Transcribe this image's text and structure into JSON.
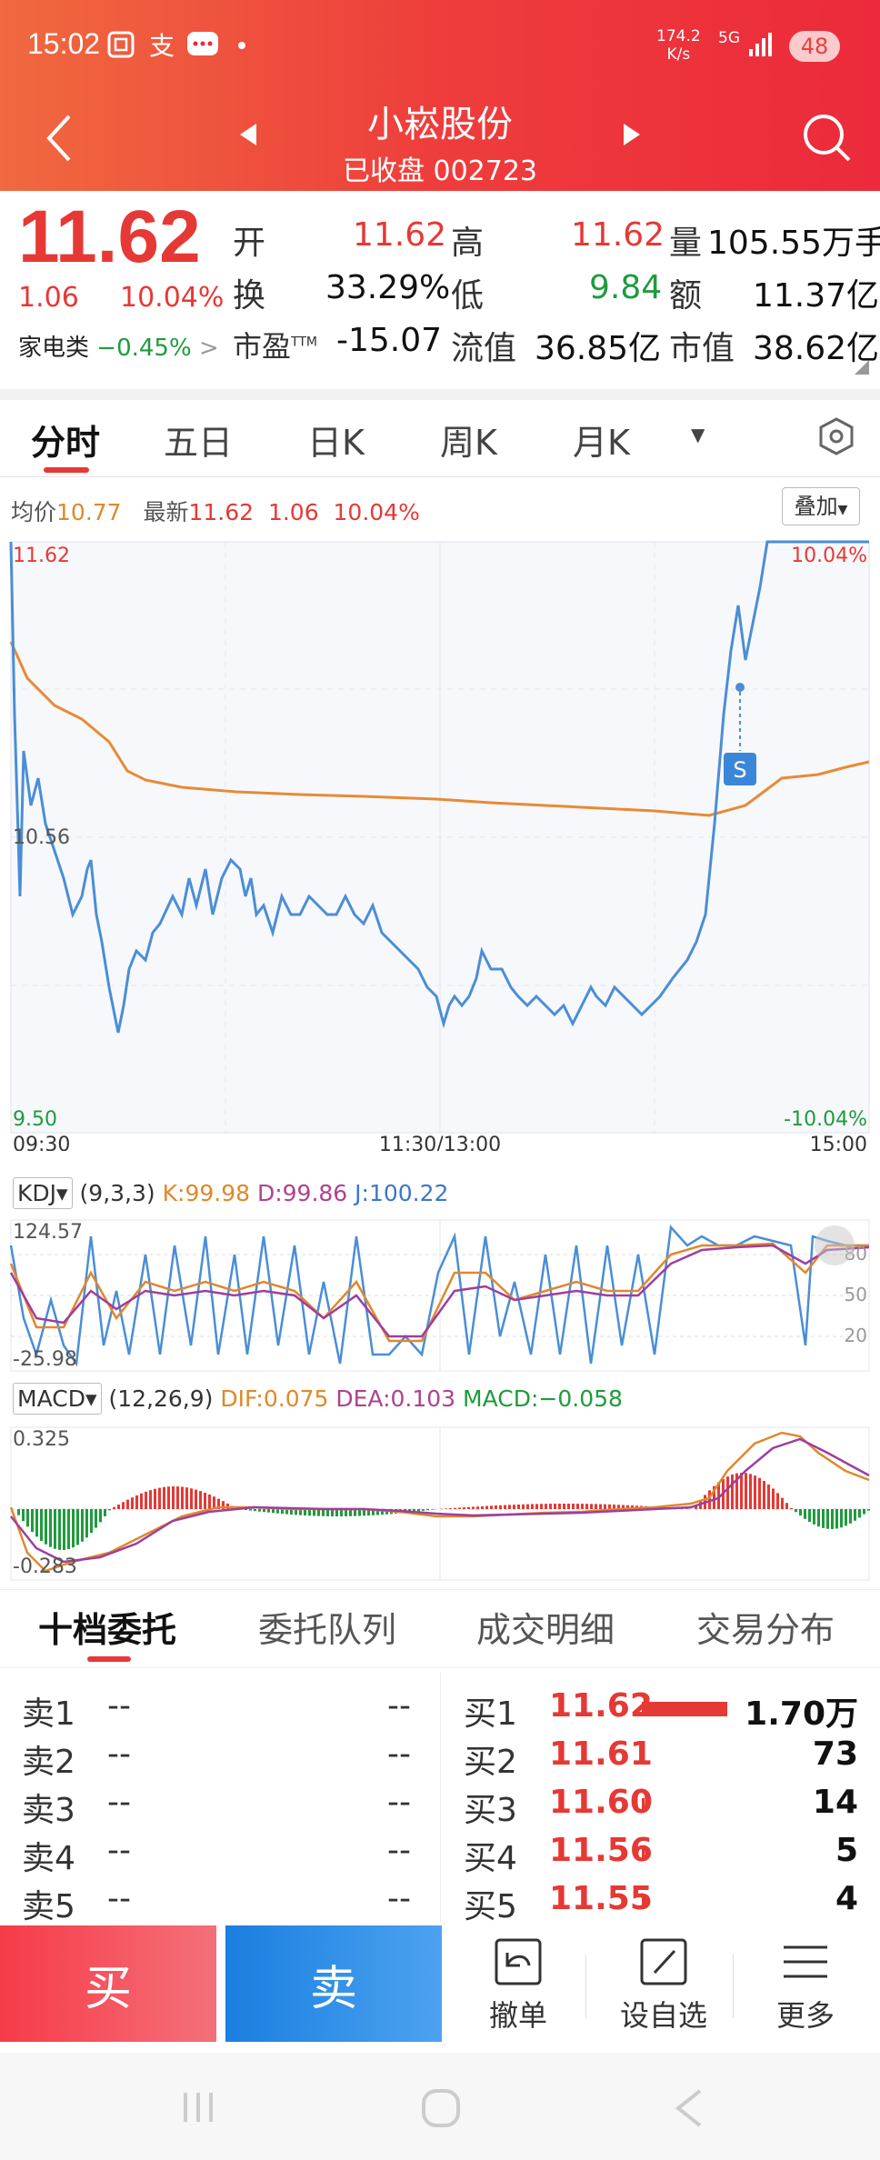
{
  "status_bar": {
    "time": "15:02",
    "speed_value": "174.2",
    "speed_unit": "K/s",
    "network": "5G",
    "battery": "48"
  },
  "header": {
    "stock_name": "小崧股份",
    "status": "已收盘",
    "code": "002723"
  },
  "quote": {
    "price": "11.62",
    "change": "1.06",
    "change_pct": "10.04%",
    "sector": "家电类",
    "sector_change": "−0.45%",
    "sector_arrow": ">",
    "fields": [
      {
        "label": "开",
        "value": "11.62"
      },
      {
        "label": "高",
        "value": "11.62"
      },
      {
        "label": "量",
        "value": "105.55万手"
      },
      {
        "label": "换",
        "value": "33.29%"
      },
      {
        "label": "低",
        "value": "9.84"
      },
      {
        "label": "额",
        "value": "11.37亿"
      },
      {
        "label": "市盈",
        "sup": "TTM",
        "value": "-15.07"
      },
      {
        "label": "流值",
        "value": "36.85亿"
      },
      {
        "label": "市值",
        "value": "38.62亿"
      }
    ]
  },
  "tabs": [
    "分时",
    "五日",
    "日K",
    "周K",
    "月K",
    "更多"
  ],
  "minute_chart": {
    "avg_label": "均价",
    "avg_value": "10.77",
    "latest_label": "最新",
    "latest_price": "11.62",
    "latest_change": "1.06",
    "latest_pct": "10.04%",
    "overlay_button": "叠加",
    "y_top": "11.62",
    "y_mid": "10.56",
    "y_bottom": "9.50",
    "pct_top": "10.04%",
    "pct_bottom": "-10.04%",
    "x_start": "09:30",
    "x_mid": "11:30/13:00",
    "x_end": "15:00",
    "marker": "S"
  },
  "kdj": {
    "name": "KDJ",
    "params": "(9,3,3)",
    "k": "K:99.98",
    "d": "D:99.86",
    "j": "J:100.22",
    "y_top": "124.57",
    "y_bottom": "-25.98",
    "right_labels": [
      "80",
      "50",
      "20"
    ]
  },
  "macd": {
    "name": "MACD",
    "params": "(12,26,9)",
    "dif": "DIF:0.075",
    "dea": "DEA:0.103",
    "macd": "MACD:−0.058",
    "y_top": "0.325",
    "y_bottom": "-0.283"
  },
  "order_tabs": [
    "十档委托",
    "委托队列",
    "成交明细",
    "交易分布"
  ],
  "sell_orders": [
    {
      "label": "卖1",
      "price": "--",
      "vol": "--"
    },
    {
      "label": "卖2",
      "price": "--",
      "vol": "--"
    },
    {
      "label": "卖3",
      "price": "--",
      "vol": "--"
    },
    {
      "label": "卖4",
      "price": "--",
      "vol": "--"
    },
    {
      "label": "卖5",
      "price": "--",
      "vol": "--"
    }
  ],
  "buy_orders": [
    {
      "label": "买1",
      "price": "11.62",
      "vol": "1.70万",
      "bar": 1.0
    },
    {
      "label": "买2",
      "price": "11.61",
      "vol": "73",
      "bar": 0.02
    },
    {
      "label": "买3",
      "price": "11.60",
      "vol": "14",
      "bar": 0.02
    },
    {
      "label": "买4",
      "price": "11.56",
      "vol": "5",
      "bar": 0.02
    },
    {
      "label": "买5",
      "price": "11.55",
      "vol": "4",
      "bar": 0.02
    }
  ],
  "bottom": {
    "buy": "买",
    "sell": "卖",
    "actions": [
      "撤单",
      "设自选",
      "更多"
    ]
  }
}
